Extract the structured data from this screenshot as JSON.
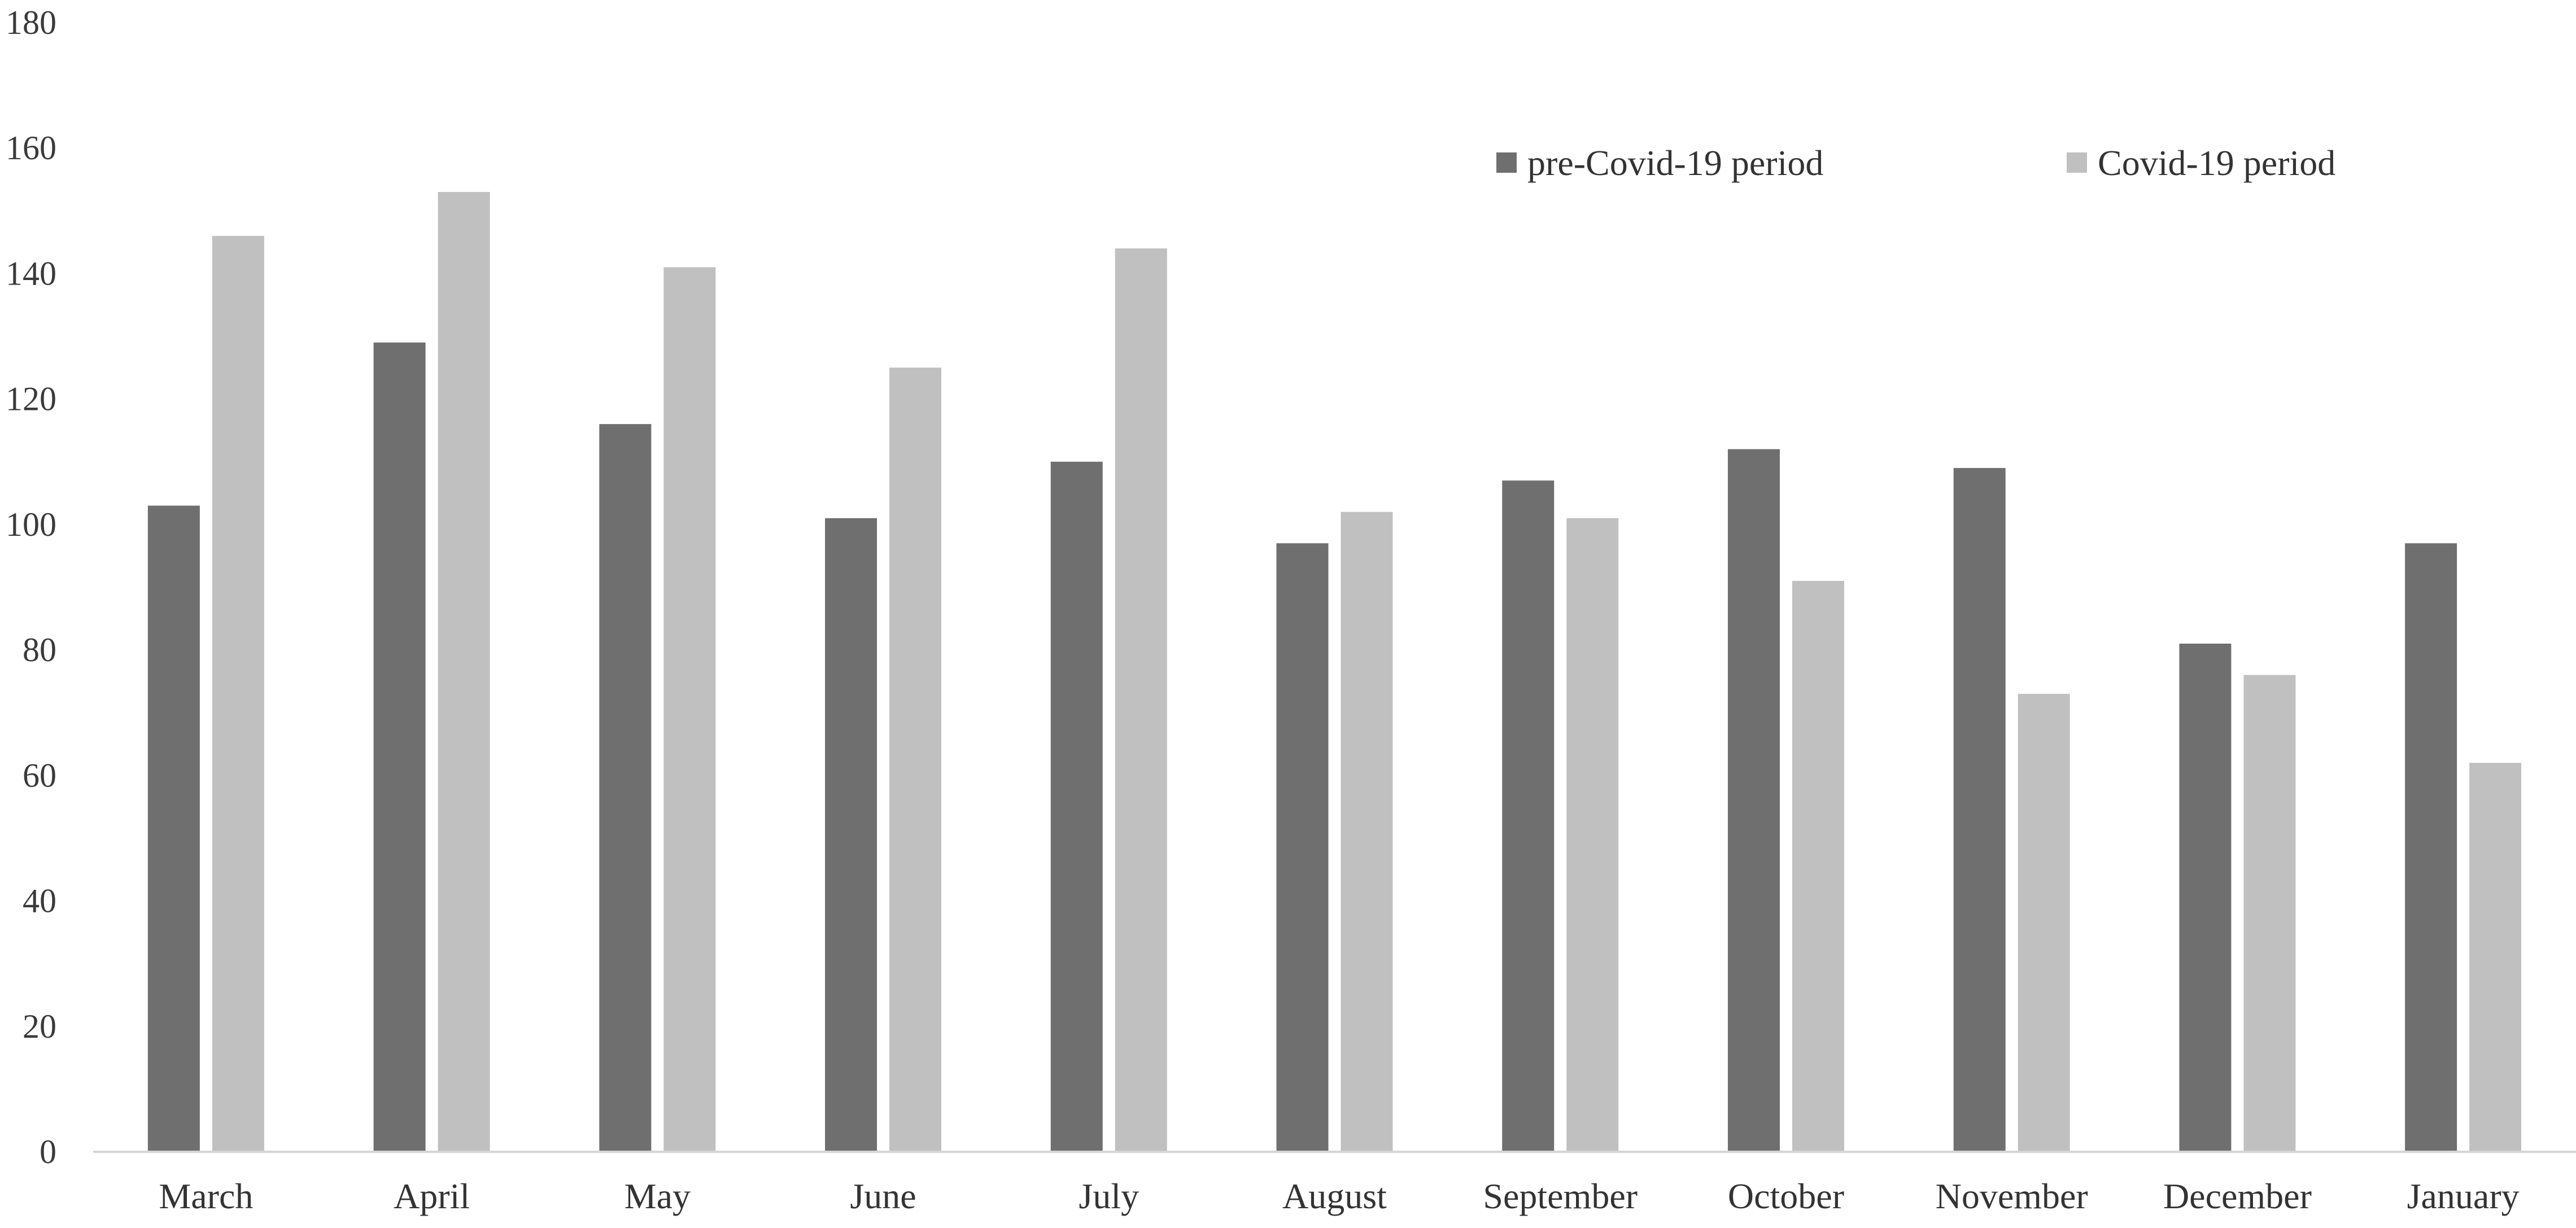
{
  "chart_data": {
    "type": "bar",
    "title": "",
    "xlabel": "",
    "ylabel": "",
    "categories": [
      "March",
      "April",
      "May",
      "June",
      "July",
      "August",
      "September",
      "October",
      "November",
      "December",
      "January"
    ],
    "series": [
      {
        "name": "pre-Covid-19 period",
        "color": "#6f6f6f",
        "values": [
          103,
          129,
          116,
          101,
          110,
          97,
          107,
          112,
          109,
          81,
          97
        ]
      },
      {
        "name": "Covid-19 period",
        "color": "#c0c0c0",
        "values": [
          146,
          153,
          141,
          125,
          144,
          102,
          101,
          91,
          73,
          76,
          62
        ]
      }
    ],
    "ylim": [
      0,
      180
    ],
    "yticks": [
      "0",
      "20",
      "40",
      "60",
      "80",
      "100",
      "120",
      "140",
      "160",
      "180"
    ],
    "grid": false,
    "legend_position": "top-right"
  }
}
